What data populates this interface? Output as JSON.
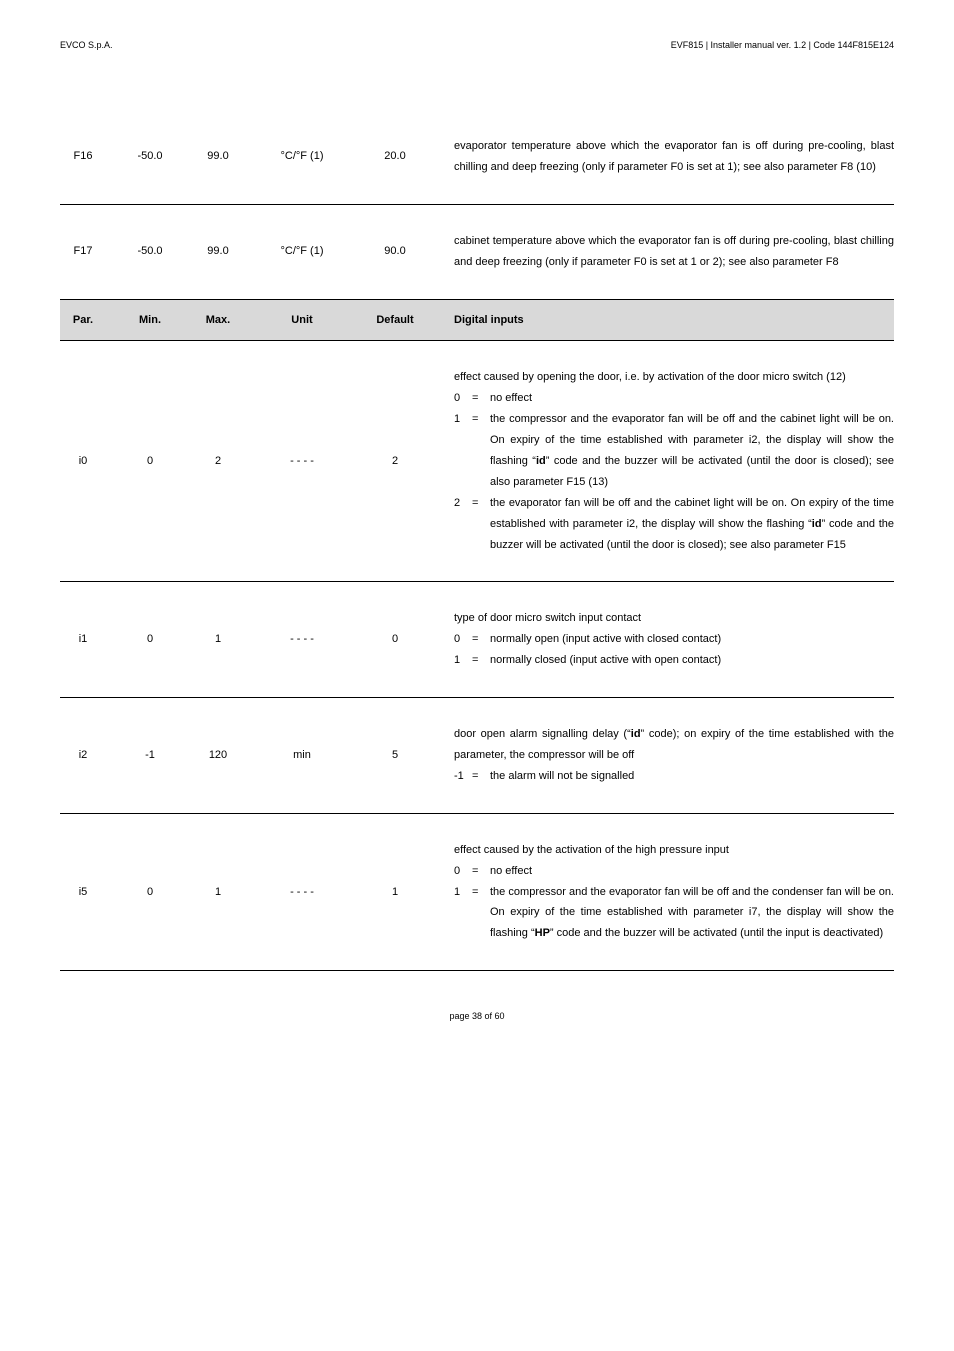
{
  "header": {
    "company": "EVCO S.p.A.",
    "doc": "EVF815 | Installer manual ver. 1.2 | Code 144F815E124"
  },
  "cols": {
    "par": "Par.",
    "min": "Min.",
    "max": "Max.",
    "unit": "Unit",
    "default": "Default",
    "desc": "Digital inputs"
  },
  "rows": {
    "f16": {
      "par": "F16",
      "min": "-50.0",
      "max": "99.0",
      "unit": "°C/°F (1)",
      "def": "20.0",
      "desc": "evaporator temperature above which the evaporator fan is off during pre-cooling, blast chilling and deep freezing (only if parameter F0 is set at 1); see also parameter F8 (10)"
    },
    "f17": {
      "par": "F17",
      "min": "-50.0",
      "max": "99.0",
      "unit": "°C/°F (1)",
      "def": "90.0",
      "desc": "cabinet temperature above which the evaporator fan is off during pre-cooling, blast chilling and deep freezing (only if parameter F0 is set at 1 or 2); see also parameter F8"
    },
    "i0": {
      "par": "i0",
      "min": "0",
      "max": "2",
      "unit": "- - - -",
      "def": "2",
      "intro": "effect caused by opening the door, i.e. by activation of the door micro switch (12)",
      "o0": "no effect",
      "o1a": "the compressor and the evaporator fan will be off and the cabinet light will be on. On expiry of the time established with parameter i2, the display will show the flashing “",
      "o1b": "” code and the buzzer will be activated (until the door is closed); see also parameter F15 (13)",
      "o2a": "the evaporator fan will be off and the cabinet light will be on. On expiry of the time established with parameter i2, the display will show the flashing “",
      "o2b": "” code and the buzzer will be activated (until the door is closed); see also parameter F15",
      "id": "id"
    },
    "i1": {
      "par": "i1",
      "min": "0",
      "max": "1",
      "unit": "- - - -",
      "def": "0",
      "intro": "type of door micro switch input contact",
      "o0": "normally open (input active with closed contact)",
      "o1": "normally closed (input active with open contact)"
    },
    "i2": {
      "par": "i2",
      "min": "-1",
      "max": "120",
      "unit": "min",
      "def": "5",
      "l1a": "door open alarm signalling delay (“",
      "l1b": "” code); on expiry of the time established with the parameter, the compressor will be off",
      "id": "id",
      "om1": "the alarm will not be signalled"
    },
    "i5": {
      "par": "i5",
      "min": "0",
      "max": "1",
      "unit": "- - - -",
      "def": "1",
      "intro": "effect caused by the activation of the high pressure input",
      "o0": "no effect",
      "o1a": "the compressor and the evaporator fan will be off and the condenser fan will be on. On expiry of the time established with parameter i7, the display will show the flashing “",
      "o1b": "” code and the buzzer will be activated (until the input is deactivated)",
      "hp": "HP"
    }
  },
  "footer": "page 38 of 60"
}
